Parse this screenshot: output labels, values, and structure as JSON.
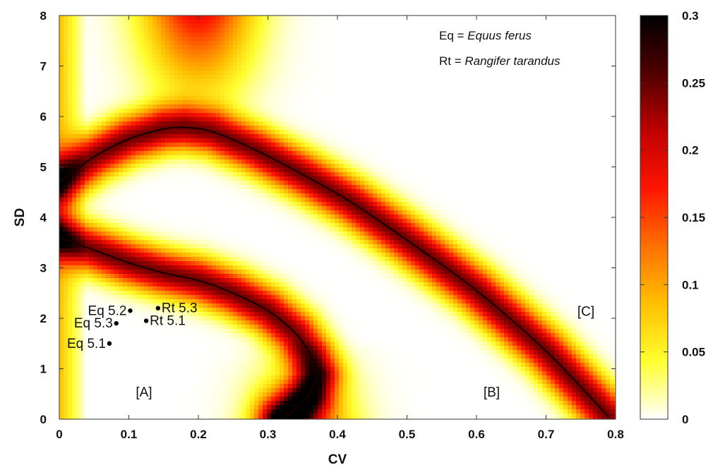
{
  "chart_data": {
    "type": "heatmap",
    "title": "",
    "xlabel": "CV",
    "ylabel": "SD",
    "xlim": [
      0,
      0.8
    ],
    "ylim": [
      0,
      8
    ],
    "x_ticks": [
      "0",
      "0.1",
      "0.2",
      "0.3",
      "0.4",
      "0.5",
      "0.6",
      "0.7",
      "0.8"
    ],
    "y_ticks": [
      "0",
      "1",
      "2",
      "3",
      "4",
      "5",
      "6",
      "7",
      "8"
    ],
    "colorbar": {
      "range": [
        0,
        0.3
      ],
      "ticks": [
        "0",
        "0.05",
        "0.1",
        "0.15",
        "0.2",
        "0.25",
        "0.3"
      ],
      "colormap": [
        "#ffffff",
        "#ffff30",
        "#ffc000",
        "#ff7000",
        "#ff1500",
        "#c00000",
        "#500000",
        "#000000"
      ]
    },
    "curves": [
      {
        "points": [
          [
            0,
            4.7
          ],
          [
            0.05,
            5.2
          ],
          [
            0.1,
            5.55
          ],
          [
            0.15,
            5.75
          ],
          [
            0.18,
            5.78
          ],
          [
            0.22,
            5.7
          ],
          [
            0.28,
            5.35
          ],
          [
            0.35,
            4.85
          ],
          [
            0.42,
            4.3
          ],
          [
            0.5,
            3.55
          ],
          [
            0.6,
            2.55
          ],
          [
            0.7,
            1.35
          ],
          [
            0.79,
            0.05
          ]
        ]
      },
      {
        "points": [
          [
            0,
            3.6
          ],
          [
            0.05,
            3.35
          ],
          [
            0.1,
            3.1
          ],
          [
            0.15,
            2.9
          ],
          [
            0.2,
            2.75
          ],
          [
            0.25,
            2.5
          ],
          [
            0.3,
            2.15
          ],
          [
            0.34,
            1.7
          ],
          [
            0.36,
            1.3
          ],
          [
            0.37,
            0.9
          ],
          [
            0.36,
            0.5
          ],
          [
            0.34,
            0.2
          ],
          [
            0.32,
            0.0
          ]
        ]
      }
    ],
    "points": [
      {
        "label": "Eq 5.2",
        "x": 0.102,
        "y": 2.15
      },
      {
        "label": "Rt 5.3",
        "x": 0.142,
        "y": 2.2
      },
      {
        "label": "Eq 5.3",
        "x": 0.082,
        "y": 1.9
      },
      {
        "label": "Rt 5.1",
        "x": 0.125,
        "y": 1.95
      },
      {
        "label": "Eq 5.1",
        "x": 0.072,
        "y": 1.5
      }
    ],
    "region_labels": [
      {
        "label": "[A]",
        "x": 0.11,
        "y": 0.45
      },
      {
        "label": "[B]",
        "x": 0.61,
        "y": 0.45
      },
      {
        "label": "[C]",
        "x": 0.745,
        "y": 2.05
      }
    ],
    "legend": {
      "position": "top-right",
      "lines": [
        {
          "abbr": "Eq",
          "eq": " = ",
          "name": "Equus ferus"
        },
        {
          "abbr": "Rt",
          "eq": " = ",
          "name": "Rangifer tarandus"
        }
      ]
    }
  }
}
